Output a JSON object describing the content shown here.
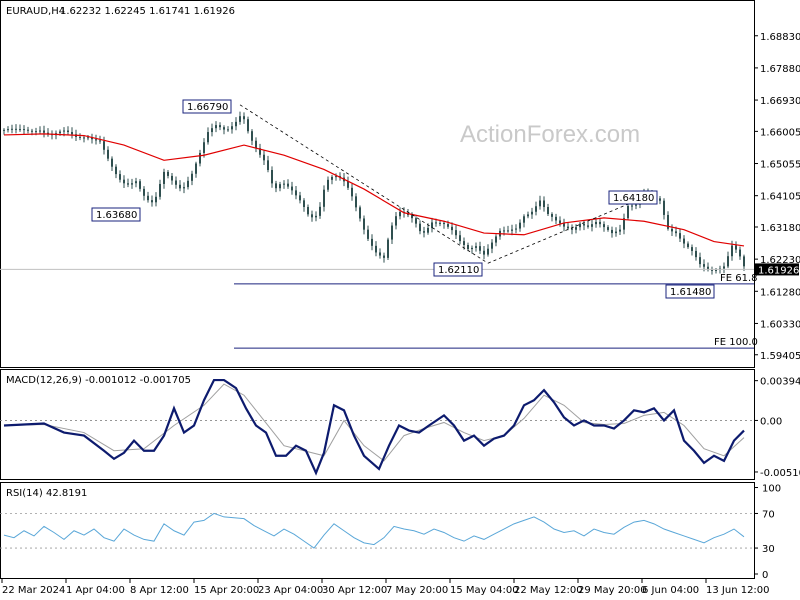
{
  "header": {
    "symbol": "EURAUD,H4",
    "ohlc": "1.62232 1.62245 1.61741 1.61926"
  },
  "watermark": "ActionForex.com",
  "colors": {
    "candles": "#2f4f4f",
    "ma": "#e00000",
    "macd": "#0d1b6e",
    "signal": "#a0a0a0",
    "rsi": "#5aa7d8",
    "border": "#000000",
    "label_border": "#1a237e"
  },
  "chart_data": [
    {
      "type": "line",
      "panel": "price",
      "title": "EURAUD,H4",
      "ylim": [
        1.5925,
        1.6965
      ],
      "y_ticks": [
        "1.68830",
        "1.67880",
        "1.66930",
        "1.66005",
        "1.65055",
        "1.64105",
        "1.63180",
        "1.62230",
        "1.61280",
        "1.60330",
        "1.59405"
      ],
      "last_price": "1.61926",
      "x_labels": [
        "22 Mar 2024",
        "1 Apr 04:00",
        "8 Apr 12:00",
        "15 Apr 20:00",
        "23 Apr 04:00",
        "30 Apr 12:00",
        "7 May 20:00",
        "15 May 04:00",
        "22 May 12:00",
        "29 May 20:00",
        "6 Jun 04:00",
        "13 Jun 12:00"
      ],
      "close_points": [
        [
          0,
          1.6605
        ],
        [
          12,
          1.6598
        ],
        [
          24,
          1.6602
        ],
        [
          36,
          1.6612
        ],
        [
          48,
          1.659
        ],
        [
          60,
          1.6594
        ],
        [
          72,
          1.6583
        ],
        [
          84,
          1.6592
        ],
        [
          96,
          1.6573
        ],
        [
          106,
          1.6498
        ],
        [
          114,
          1.6455
        ],
        [
          122,
          1.6442
        ],
        [
          132,
          1.6462
        ],
        [
          142,
          1.6405
        ],
        [
          150,
          1.6383
        ],
        [
          160,
          1.6472
        ],
        [
          170,
          1.6448
        ],
        [
          178,
          1.6435
        ],
        [
          188,
          1.6482
        ],
        [
          196,
          1.6535
        ],
        [
          204,
          1.659
        ],
        [
          212,
          1.6612
        ],
        [
          222,
          1.6606
        ],
        [
          230,
          1.663
        ],
        [
          238,
          1.666
        ],
        [
          246,
          1.658
        ],
        [
          254,
          1.653
        ],
        [
          262,
          1.65
        ],
        [
          270,
          1.643
        ],
        [
          278,
          1.646
        ],
        [
          286,
          1.644
        ],
        [
          296,
          1.6392
        ],
        [
          306,
          1.6335
        ],
        [
          314,
          1.635
        ],
        [
          322,
          1.646
        ],
        [
          330,
          1.648
        ],
        [
          338,
          1.6465
        ],
        [
          346,
          1.6418
        ],
        [
          354,
          1.635
        ],
        [
          362,
          1.629
        ],
        [
          372,
          1.625
        ],
        [
          380,
          1.6235
        ],
        [
          386,
          1.6312
        ],
        [
          394,
          1.6358
        ],
        [
          402,
          1.6348
        ],
        [
          410,
          1.6335
        ],
        [
          418,
          1.63
        ],
        [
          428,
          1.634
        ],
        [
          438,
          1.633
        ],
        [
          448,
          1.63
        ],
        [
          456,
          1.627
        ],
        [
          464,
          1.6255
        ],
        [
          472,
          1.627
        ],
        [
          480,
          1.6243
        ],
        [
          488,
          1.627
        ],
        [
          496,
          1.6298
        ],
        [
          504,
          1.63
        ],
        [
          512,
          1.6315
        ],
        [
          520,
          1.6358
        ],
        [
          528,
          1.637
        ],
        [
          536,
          1.6395
        ],
        [
          544,
          1.6348
        ],
        [
          552,
          1.633
        ],
        [
          560,
          1.632
        ],
        [
          568,
          1.6318
        ],
        [
          576,
          1.6335
        ],
        [
          584,
          1.6318
        ],
        [
          592,
          1.6325
        ],
        [
          600,
          1.631
        ],
        [
          608,
          1.63
        ],
        [
          616,
          1.6318
        ],
        [
          624,
          1.6388
        ],
        [
          632,
          1.6384
        ],
        [
          640,
          1.641
        ],
        [
          648,
          1.64
        ],
        [
          656,
          1.6395
        ],
        [
          664,
          1.632
        ],
        [
          672,
          1.6308
        ],
        [
          680,
          1.627
        ],
        [
          688,
          1.624
        ],
        [
          696,
          1.62
        ],
        [
          704,
          1.619
        ],
        [
          712,
          1.6198
        ],
        [
          720,
          1.621
        ],
        [
          728,
          1.6265
        ],
        [
          734,
          1.624
        ],
        [
          740,
          1.6193
        ]
      ],
      "ma_points": [
        [
          0,
          1.659
        ],
        [
          40,
          1.6593
        ],
        [
          80,
          1.6588
        ],
        [
          120,
          1.656
        ],
        [
          160,
          1.6515
        ],
        [
          200,
          1.653
        ],
        [
          240,
          1.656
        ],
        [
          280,
          1.653
        ],
        [
          320,
          1.6488
        ],
        [
          360,
          1.643
        ],
        [
          400,
          1.636
        ],
        [
          440,
          1.6335
        ],
        [
          480,
          1.63
        ],
        [
          520,
          1.6295
        ],
        [
          560,
          1.633
        ],
        [
          600,
          1.6345
        ],
        [
          640,
          1.6335
        ],
        [
          680,
          1.631
        ],
        [
          710,
          1.6275
        ],
        [
          740,
          1.6262
        ]
      ],
      "annotations": [
        {
          "label": "1.66790",
          "value": 1.6679
        },
        {
          "label": "1.63680",
          "value": 1.6368
        },
        {
          "label": "1.62110",
          "value": 1.6211
        },
        {
          "label": "1.64180",
          "value": 1.6418
        },
        {
          "label": "1.61480",
          "value": 1.6148
        }
      ],
      "fib_levels": [
        {
          "label": "FE 61.8",
          "value": 1.615
        },
        {
          "label": "FE 100.0",
          "value": 1.596
        }
      ],
      "trendlines": [
        {
          "from": [
            236,
            1.6679
          ],
          "to": [
            484,
            1.6211
          ]
        },
        {
          "from": [
            484,
            1.6211
          ],
          "to": [
            650,
            1.6418
          ]
        }
      ]
    },
    {
      "type": "line",
      "panel": "macd",
      "title": "MACD(12,26,9) -0.001012 -0.001705",
      "ylim": [
        -0.0057,
        0.0046
      ],
      "y_ticks": [
        "0.003941",
        "0.00",
        "-0.005103"
      ],
      "macd_points": [
        [
          0,
          -0.0005
        ],
        [
          20,
          -0.0004
        ],
        [
          40,
          -0.0003
        ],
        [
          60,
          -0.0012
        ],
        [
          80,
          -0.0015
        ],
        [
          100,
          -0.003
        ],
        [
          110,
          -0.0038
        ],
        [
          120,
          -0.0032
        ],
        [
          130,
          -0.002
        ],
        [
          140,
          -0.003
        ],
        [
          150,
          -0.003
        ],
        [
          160,
          -0.0015
        ],
        [
          170,
          0.0012
        ],
        [
          180,
          -0.0012
        ],
        [
          190,
          -0.0005
        ],
        [
          200,
          0.002
        ],
        [
          210,
          0.004
        ],
        [
          220,
          0.004
        ],
        [
          232,
          0.0032
        ],
        [
          242,
          0.0012
        ],
        [
          252,
          -0.0005
        ],
        [
          262,
          -0.0012
        ],
        [
          272,
          -0.0035
        ],
        [
          282,
          -0.0035
        ],
        [
          292,
          -0.0025
        ],
        [
          302,
          -0.003
        ],
        [
          312,
          -0.0052
        ],
        [
          320,
          -0.0032
        ],
        [
          330,
          0.0015
        ],
        [
          340,
          0.001
        ],
        [
          350,
          -0.0015
        ],
        [
          360,
          -0.0035
        ],
        [
          375,
          -0.0048
        ],
        [
          385,
          -0.0025
        ],
        [
          395,
          -0.0005
        ],
        [
          405,
          -0.001
        ],
        [
          415,
          -0.0012
        ],
        [
          425,
          -0.0005
        ],
        [
          440,
          0.0005
        ],
        [
          450,
          -0.0005
        ],
        [
          460,
          -0.002
        ],
        [
          470,
          -0.0015
        ],
        [
          480,
          -0.0025
        ],
        [
          490,
          -0.0018
        ],
        [
          500,
          -0.0015
        ],
        [
          510,
          -0.0005
        ],
        [
          520,
          0.0015
        ],
        [
          530,
          0.002
        ],
        [
          540,
          0.003
        ],
        [
          550,
          0.0018
        ],
        [
          560,
          0.0003
        ],
        [
          570,
          -0.0005
        ],
        [
          580,
          0.0
        ],
        [
          590,
          -0.0005
        ],
        [
          600,
          -0.0005
        ],
        [
          610,
          -0.0008
        ],
        [
          620,
          0.0
        ],
        [
          630,
          0.001
        ],
        [
          640,
          0.0008
        ],
        [
          650,
          0.0012
        ],
        [
          660,
          0.0
        ],
        [
          670,
          0.001
        ],
        [
          680,
          -0.002
        ],
        [
          690,
          -0.003
        ],
        [
          700,
          -0.0042
        ],
        [
          710,
          -0.0035
        ],
        [
          720,
          -0.004
        ],
        [
          730,
          -0.002
        ],
        [
          740,
          -0.001
        ]
      ],
      "signal_points": [
        [
          0,
          -0.0005
        ],
        [
          40,
          -0.0004
        ],
        [
          80,
          -0.0012
        ],
        [
          110,
          -0.003
        ],
        [
          140,
          -0.0028
        ],
        [
          170,
          -0.0005
        ],
        [
          200,
          0.0015
        ],
        [
          220,
          0.0036
        ],
        [
          240,
          0.0025
        ],
        [
          260,
          0.0
        ],
        [
          280,
          -0.0025
        ],
        [
          300,
          -0.003
        ],
        [
          320,
          -0.0035
        ],
        [
          340,
          0.0
        ],
        [
          360,
          -0.0025
        ],
        [
          380,
          -0.004
        ],
        [
          400,
          -0.0015
        ],
        [
          420,
          -0.0008
        ],
        [
          440,
          -0.0002
        ],
        [
          460,
          -0.0012
        ],
        [
          480,
          -0.002
        ],
        [
          500,
          -0.0015
        ],
        [
          520,
          0.0002
        ],
        [
          540,
          0.0025
        ],
        [
          560,
          0.0015
        ],
        [
          580,
          -0.0002
        ],
        [
          600,
          -0.0004
        ],
        [
          620,
          -0.0003
        ],
        [
          640,
          0.0005
        ],
        [
          660,
          0.0008
        ],
        [
          680,
          -0.0005
        ],
        [
          700,
          -0.0028
        ],
        [
          720,
          -0.0035
        ],
        [
          740,
          -0.0017
        ]
      ]
    },
    {
      "type": "line",
      "panel": "rsi",
      "title": "RSI(14) 42.8191",
      "ylim": [
        0,
        100
      ],
      "y_ticks": [
        "100",
        "70",
        "30",
        "0"
      ],
      "levels": [
        70,
        30
      ],
      "rsi_points": [
        [
          0,
          45
        ],
        [
          10,
          42
        ],
        [
          20,
          50
        ],
        [
          30,
          44
        ],
        [
          40,
          55
        ],
        [
          50,
          48
        ],
        [
          60,
          40
        ],
        [
          70,
          50
        ],
        [
          80,
          45
        ],
        [
          90,
          52
        ],
        [
          100,
          42
        ],
        [
          110,
          38
        ],
        [
          120,
          52
        ],
        [
          130,
          45
        ],
        [
          140,
          40
        ],
        [
          150,
          38
        ],
        [
          160,
          58
        ],
        [
          170,
          50
        ],
        [
          180,
          45
        ],
        [
          190,
          60
        ],
        [
          200,
          62
        ],
        [
          210,
          70
        ],
        [
          220,
          66
        ],
        [
          230,
          65
        ],
        [
          240,
          64
        ],
        [
          250,
          56
        ],
        [
          260,
          50
        ],
        [
          270,
          44
        ],
        [
          280,
          52
        ],
        [
          290,
          46
        ],
        [
          300,
          38
        ],
        [
          310,
          30
        ],
        [
          320,
          45
        ],
        [
          330,
          58
        ],
        [
          340,
          50
        ],
        [
          350,
          42
        ],
        [
          360,
          36
        ],
        [
          370,
          34
        ],
        [
          380,
          42
        ],
        [
          390,
          55
        ],
        [
          400,
          52
        ],
        [
          410,
          50
        ],
        [
          420,
          46
        ],
        [
          430,
          52
        ],
        [
          440,
          48
        ],
        [
          450,
          42
        ],
        [
          460,
          38
        ],
        [
          470,
          44
        ],
        [
          480,
          40
        ],
        [
          490,
          46
        ],
        [
          500,
          52
        ],
        [
          510,
          58
        ],
        [
          520,
          62
        ],
        [
          530,
          66
        ],
        [
          540,
          60
        ],
        [
          550,
          52
        ],
        [
          560,
          48
        ],
        [
          570,
          50
        ],
        [
          580,
          44
        ],
        [
          590,
          52
        ],
        [
          600,
          48
        ],
        [
          610,
          46
        ],
        [
          620,
          54
        ],
        [
          630,
          60
        ],
        [
          640,
          62
        ],
        [
          650,
          58
        ],
        [
          660,
          52
        ],
        [
          670,
          48
        ],
        [
          680,
          44
        ],
        [
          690,
          40
        ],
        [
          700,
          36
        ],
        [
          710,
          42
        ],
        [
          720,
          46
        ],
        [
          730,
          52
        ],
        [
          740,
          43
        ]
      ]
    }
  ]
}
